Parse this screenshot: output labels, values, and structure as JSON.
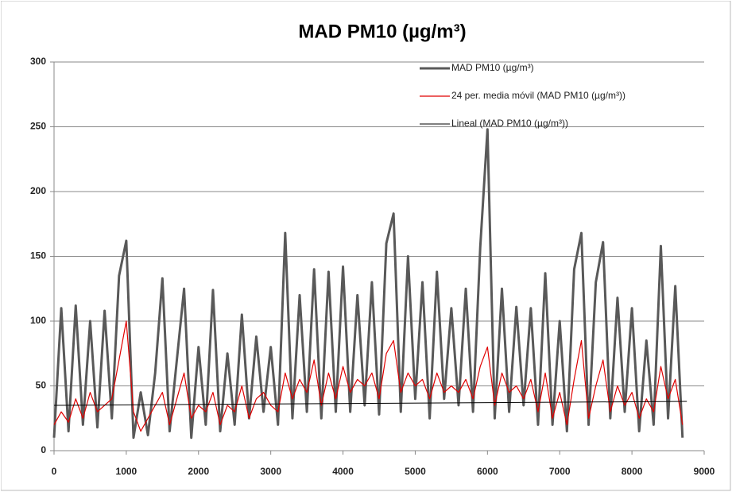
{
  "chart_data": {
    "type": "line",
    "title": "MAD PM10 (µg/m³)",
    "x": [
      0,
      100,
      200,
      300,
      400,
      500,
      600,
      700,
      800,
      900,
      1000,
      1100,
      1200,
      1300,
      1400,
      1500,
      1600,
      1700,
      1800,
      1900,
      2000,
      2100,
      2200,
      2300,
      2400,
      2500,
      2600,
      2700,
      2800,
      2900,
      3000,
      3100,
      3200,
      3300,
      3400,
      3500,
      3600,
      3700,
      3800,
      3900,
      4000,
      4100,
      4200,
      4300,
      4400,
      4500,
      4600,
      4700,
      4800,
      4900,
      5000,
      5100,
      5200,
      5300,
      5400,
      5500,
      5600,
      5700,
      5800,
      5900,
      6000,
      6100,
      6200,
      6300,
      6400,
      6500,
      6600,
      6700,
      6800,
      6900,
      7000,
      7100,
      7200,
      7300,
      7400,
      7500,
      7600,
      7700,
      7800,
      7900,
      8000,
      8100,
      8200,
      8300,
      8400,
      8500,
      8600,
      8700
    ],
    "series": [
      {
        "name": "MAD PM10 (µg/m³)",
        "color": "#595959",
        "width": 3,
        "values": [
          10,
          110,
          15,
          112,
          20,
          100,
          18,
          108,
          25,
          135,
          162,
          10,
          45,
          12,
          60,
          133,
          15,
          70,
          125,
          10,
          80,
          20,
          124,
          15,
          75,
          20,
          105,
          25,
          88,
          30,
          80,
          20,
          168,
          25,
          120,
          30,
          140,
          25,
          138,
          30,
          142,
          30,
          120,
          35,
          130,
          28,
          160,
          183,
          30,
          150,
          40,
          130,
          25,
          138,
          40,
          110,
          35,
          125,
          30,
          157,
          248,
          25,
          125,
          30,
          111,
          35,
          110,
          20,
          137,
          20,
          100,
          15,
          140,
          168,
          20,
          130,
          161,
          25,
          118,
          30,
          110,
          15,
          85,
          20,
          158,
          25,
          127,
          10
        ]
      },
      {
        "name": "24 per. media móvil (MAD PM10 (µg/m³))",
        "color": "#e00000",
        "width": 1.2,
        "values": [
          20,
          30,
          22,
          40,
          25,
          45,
          30,
          35,
          40,
          70,
          100,
          30,
          15,
          25,
          35,
          45,
          20,
          40,
          60,
          25,
          35,
          30,
          45,
          20,
          35,
          30,
          50,
          25,
          40,
          45,
          35,
          30,
          60,
          40,
          55,
          45,
          70,
          35,
          60,
          40,
          65,
          45,
          55,
          50,
          60,
          40,
          75,
          85,
          45,
          60,
          50,
          55,
          40,
          60,
          45,
          50,
          45,
          55,
          40,
          65,
          80,
          35,
          60,
          45,
          50,
          40,
          55,
          30,
          60,
          25,
          45,
          20,
          55,
          85,
          25,
          50,
          70,
          30,
          50,
          35,
          45,
          25,
          40,
          30,
          65,
          40,
          55,
          20
        ]
      },
      {
        "name": "Lineal (MAD PM10 (µg/m³))",
        "color": "#000000",
        "width": 1,
        "x": [
          0,
          8760
        ],
        "values": [
          35,
          38
        ]
      }
    ],
    "xlim": [
      0,
      9000
    ],
    "xticks": [
      0,
      1000,
      2000,
      3000,
      4000,
      5000,
      6000,
      7000,
      8000,
      9000
    ],
    "ylim": [
      0,
      300
    ],
    "yticks": [
      0,
      50,
      100,
      150,
      200,
      250,
      300
    ],
    "grid": true,
    "legend": "top-right"
  }
}
